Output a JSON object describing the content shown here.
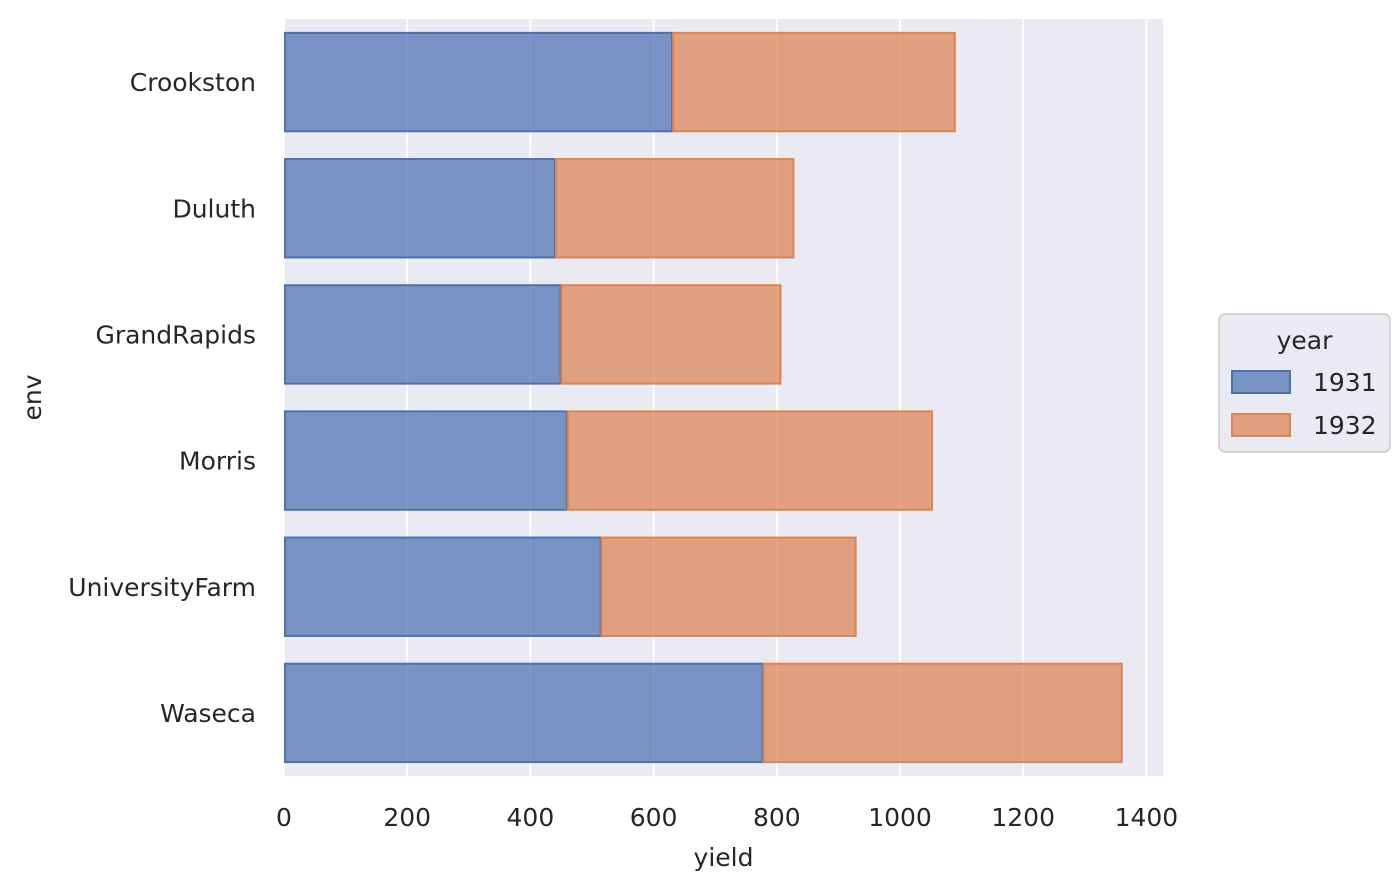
{
  "chart_data": {
    "type": "bar",
    "orientation": "horizontal",
    "stacked": true,
    "categories": [
      "Crookston",
      "Duluth",
      "GrandRapids",
      "Morris",
      "UniversityFarm",
      "Waseca"
    ],
    "series": [
      {
        "name": "1931",
        "values": [
          630,
          440,
          449,
          459,
          514,
          777
        ]
      },
      {
        "name": "1932",
        "values": [
          459,
          387,
          357,
          593,
          414,
          583
        ]
      }
    ],
    "xlabel": "yield",
    "ylabel": "env",
    "xlim": [
      0,
      1420
    ],
    "x_ticks": [
      0,
      200,
      400,
      600,
      800,
      1000,
      1200,
      1400
    ],
    "x_tick_labels": [
      "0",
      "200",
      "400",
      "600",
      "800",
      "1000",
      "1200",
      "1400"
    ],
    "grid": true,
    "legend": {
      "title": "year",
      "placement": "right"
    },
    "colors": {
      "series": [
        "#4c72b0",
        "#dd8452"
      ],
      "background": "#eaeaf2",
      "grid": "#ffffff"
    }
  }
}
